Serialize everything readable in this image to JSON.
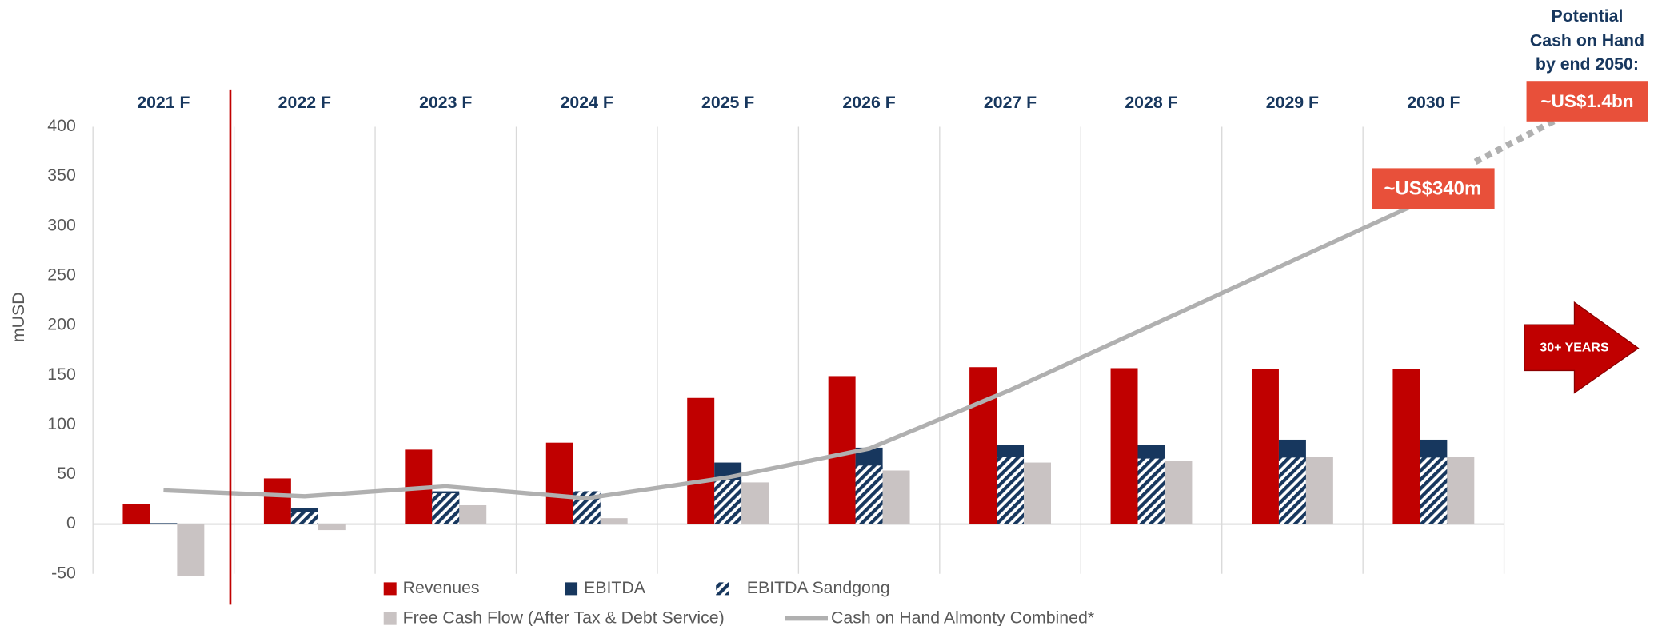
{
  "chart_data": {
    "type": "bar",
    "y_label": "mUSD",
    "categories": [
      "2021 F",
      "2022 F",
      "2023 F",
      "2024 F",
      "2025 F",
      "2026 F",
      "2027 F",
      "2028 F",
      "2029 F",
      "2030 F"
    ],
    "series": [
      {
        "name": "Revenues",
        "color": "#c00000",
        "values": [
          20,
          46,
          75,
          82,
          127,
          149,
          158,
          157,
          156,
          156
        ]
      },
      {
        "name": "EBITDA",
        "color": "#17375e",
        "values": [
          1,
          16,
          33,
          33,
          62,
          77,
          80,
          80,
          85,
          85
        ]
      },
      {
        "name": "EBITDA Sandgong",
        "color": "#17375e",
        "hatch": true,
        "values": [
          0,
          12,
          31,
          33,
          44,
          59,
          68,
          66,
          67,
          67
        ]
      },
      {
        "name": "Free Cash Flow (After Tax & Debt Service)",
        "color": "#c9c3c3",
        "values": [
          -52,
          -6,
          19,
          6,
          42,
          54,
          62,
          64,
          68,
          68
        ]
      },
      {
        "name": "Cash on Hand Almonty Combined*",
        "type": "line",
        "color": "#b0b0b0",
        "values": [
          34,
          28,
          38,
          26,
          47,
          76,
          135,
          200,
          265,
          330
        ]
      }
    ],
    "ylim": [
      -50,
      400
    ],
    "yticks": [
      -50,
      0,
      50,
      100,
      150,
      200,
      250,
      300,
      350,
      400
    ],
    "annotations": {
      "cash_2030": "~US$340m",
      "cash_2050_heading": [
        "Potential",
        "Cash on Hand",
        "by end 2050:"
      ],
      "cash_2050": "~US$1.4bn",
      "arrow": "30+ YEARS"
    }
  }
}
